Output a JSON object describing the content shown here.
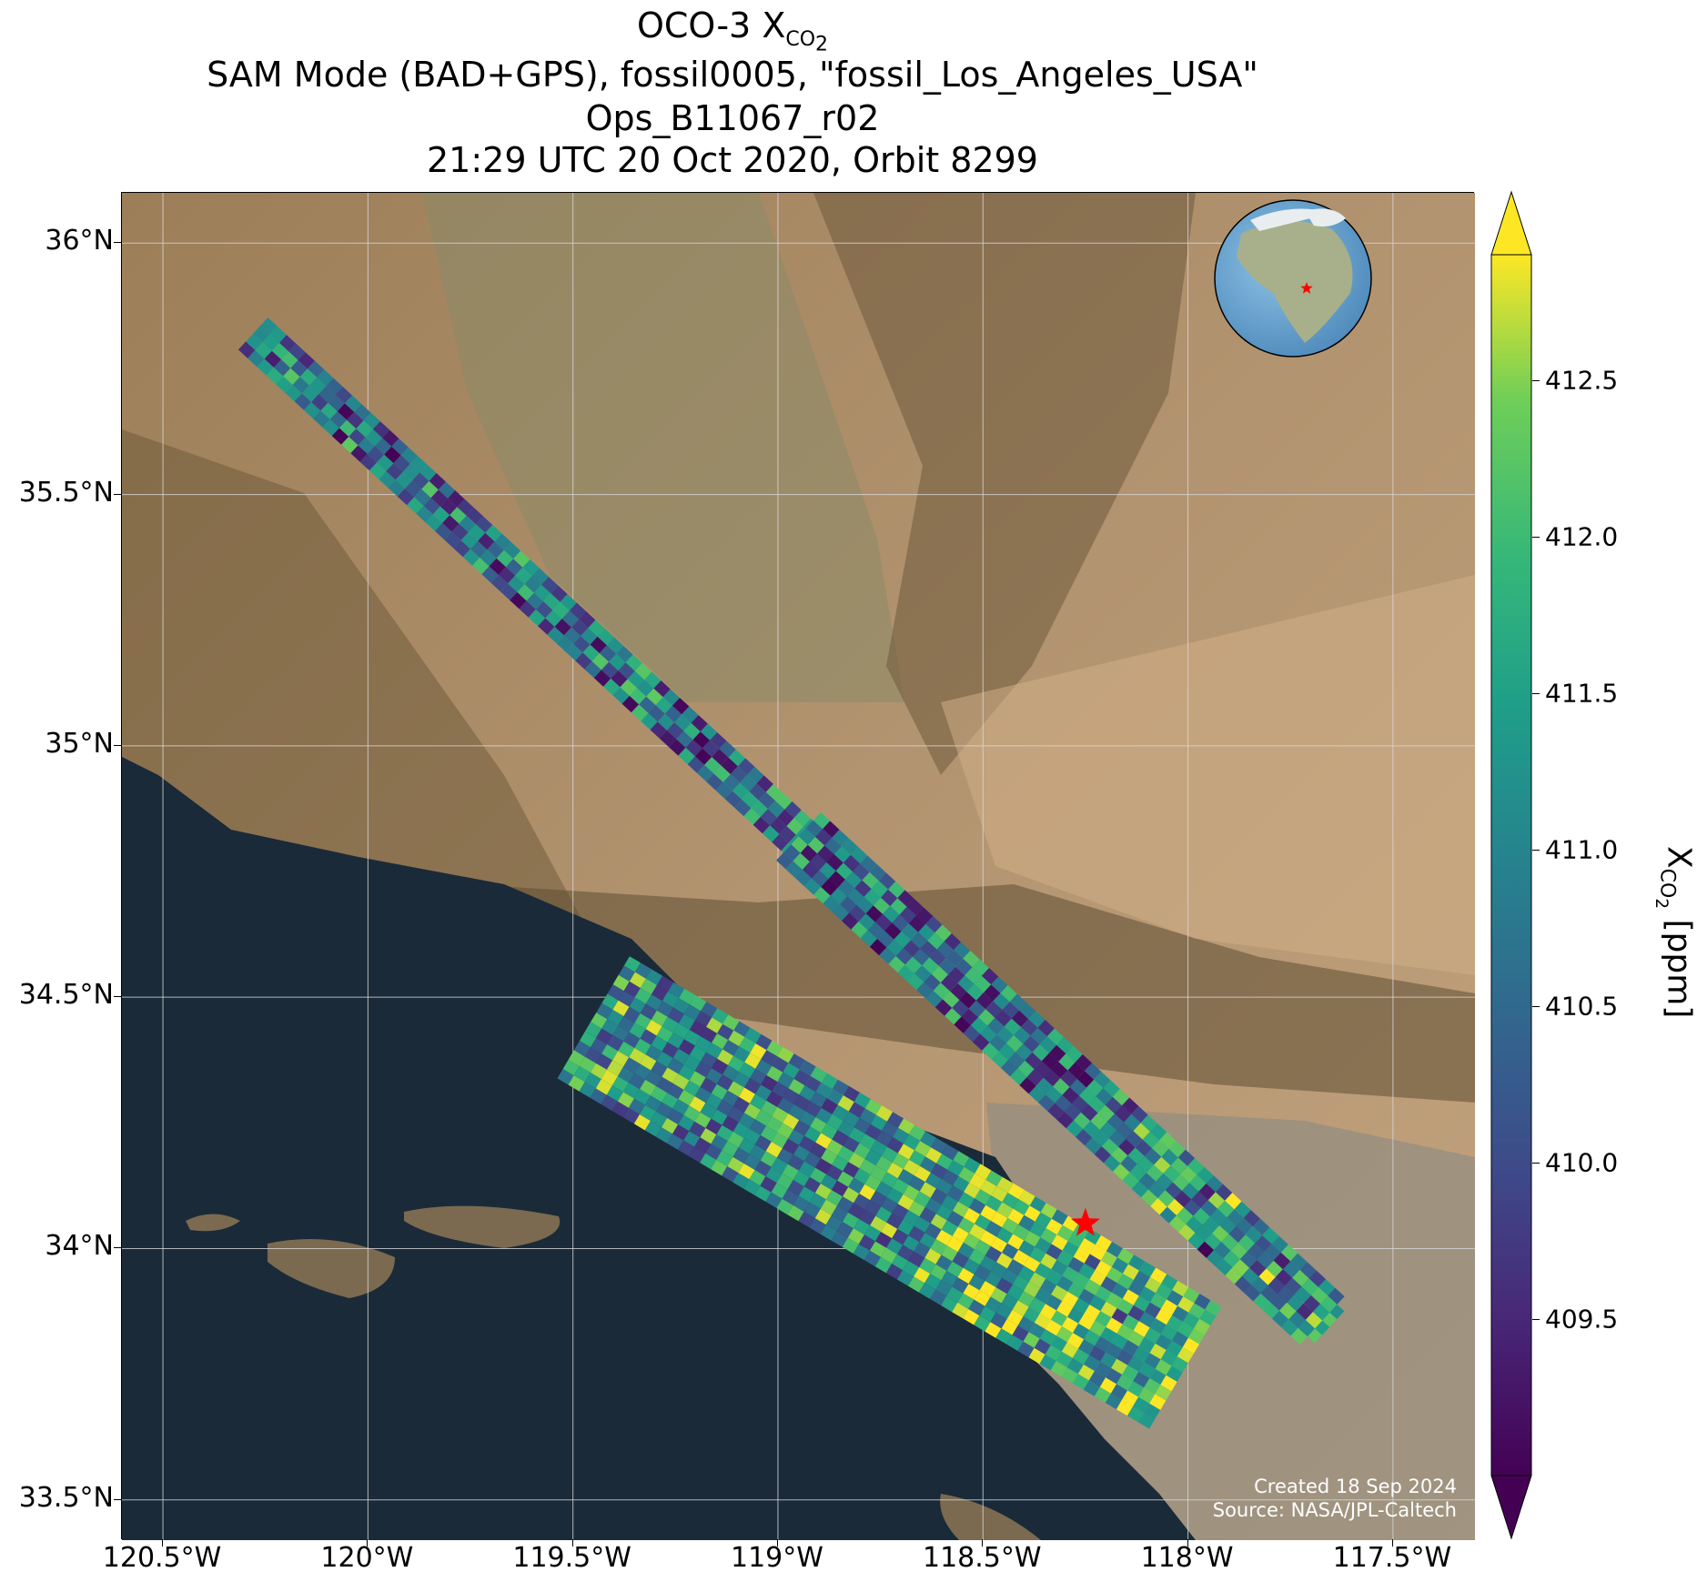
{
  "title": {
    "line1_prefix": "OCO-3 X",
    "line1_sub": "CO",
    "line1_sub2": "2",
    "line2": "SAM Mode (BAD+GPS), fossil0005, \"fossil_Los_Angeles_USA\"",
    "line3": "Ops_B11067_r02",
    "line4": "21:29 UTC 20 Oct 2020, Orbit 8299"
  },
  "map": {
    "lon_range": [
      -120.6,
      -117.3
    ],
    "lat_range": [
      33.42,
      36.1
    ],
    "lat_ticks": [
      {
        "value": 36.0,
        "label": "36°N"
      },
      {
        "value": 35.5,
        "label": "35.5°N"
      },
      {
        "value": 35.0,
        "label": "35°N"
      },
      {
        "value": 34.5,
        "label": "34.5°N"
      },
      {
        "value": 34.0,
        "label": "34°N"
      },
      {
        "value": 33.5,
        "label": "33.5°N"
      }
    ],
    "lon_ticks": [
      {
        "value": -120.5,
        "label": "120.5°W"
      },
      {
        "value": -120.0,
        "label": "120°W"
      },
      {
        "value": -119.5,
        "label": "119.5°W"
      },
      {
        "value": -119.0,
        "label": "119°W"
      },
      {
        "value": -118.5,
        "label": "118.5°W"
      },
      {
        "value": -118.0,
        "label": "118°W"
      },
      {
        "value": -117.5,
        "label": "117.5°W"
      }
    ],
    "gridlines": true,
    "target_marker": {
      "name": "star",
      "color": "#ff0000",
      "lon": -118.25,
      "lat": 34.05
    },
    "inset_globe": "north-america-globe-with-red-star",
    "colors": {
      "ocean": "#1a2a38",
      "land": "#a88a64",
      "mountain": "#6e5a3c",
      "urban": "#8a8a82"
    }
  },
  "colorbar": {
    "label_prefix": "X",
    "label_sub": "CO",
    "label_sub2": "2",
    "label_suffix": " [ppm]",
    "vmin": 409.0,
    "vmax": 412.9,
    "colormap": "viridis",
    "ticks": [
      {
        "value": 409.5,
        "label": "409.5"
      },
      {
        "value": 410.0,
        "label": "410.0"
      },
      {
        "value": 410.5,
        "label": "410.5"
      },
      {
        "value": 411.0,
        "label": "411.0"
      },
      {
        "value": 411.5,
        "label": "411.5"
      },
      {
        "value": 412.0,
        "label": "412.0"
      },
      {
        "value": 412.5,
        "label": "412.5"
      }
    ],
    "extend": "both"
  },
  "credit": {
    "line1": "Created 18 Sep 2024",
    "line2": "Source: NASA/JPL-Caltech"
  },
  "chart_data": {
    "type": "heatmap",
    "variable": "XCO2",
    "units": "ppm",
    "swaths": [
      {
        "name": "swath-north",
        "start": [
          -120.28,
          35.82
        ],
        "end": [
          -117.65,
          33.84
        ],
        "width_deg": 0.13
      },
      {
        "name": "swath-mid",
        "start": [
          -118.95,
          34.82
        ],
        "end": [
          -117.65,
          33.84
        ],
        "width_deg": 0.16
      },
      {
        "name": "swath-south",
        "start": [
          -119.45,
          34.46
        ],
        "end": [
          -118.0,
          33.76
        ],
        "width_deg": 0.36
      }
    ]
  }
}
